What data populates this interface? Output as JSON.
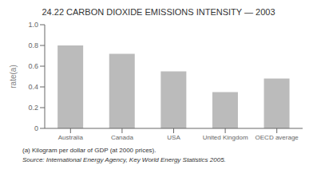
{
  "chart_data": {
    "type": "bar",
    "title": "24.22  CARBON DIOXIDE EMISSIONS INTENSITY — 2003",
    "categories": [
      "Australia",
      "Canada",
      "USA",
      "United Kingdom",
      "OECD average"
    ],
    "values": [
      0.8,
      0.72,
      0.55,
      0.35,
      0.48
    ],
    "color": "#bbbbbb",
    "ylim": [
      0,
      1.0
    ],
    "yticks": [
      0,
      0.2,
      0.4,
      0.6,
      0.8,
      {
        "value": 1,
        "label": "1.0"
      }
    ],
    "ylabel": "rate(a)",
    "grid": false,
    "annotations": [
      "(a) Kilogram per dollar of GDP (at 2000 prices).",
      "Source: International Energy Agency, Key World Energy Statistics 2005."
    ]
  }
}
